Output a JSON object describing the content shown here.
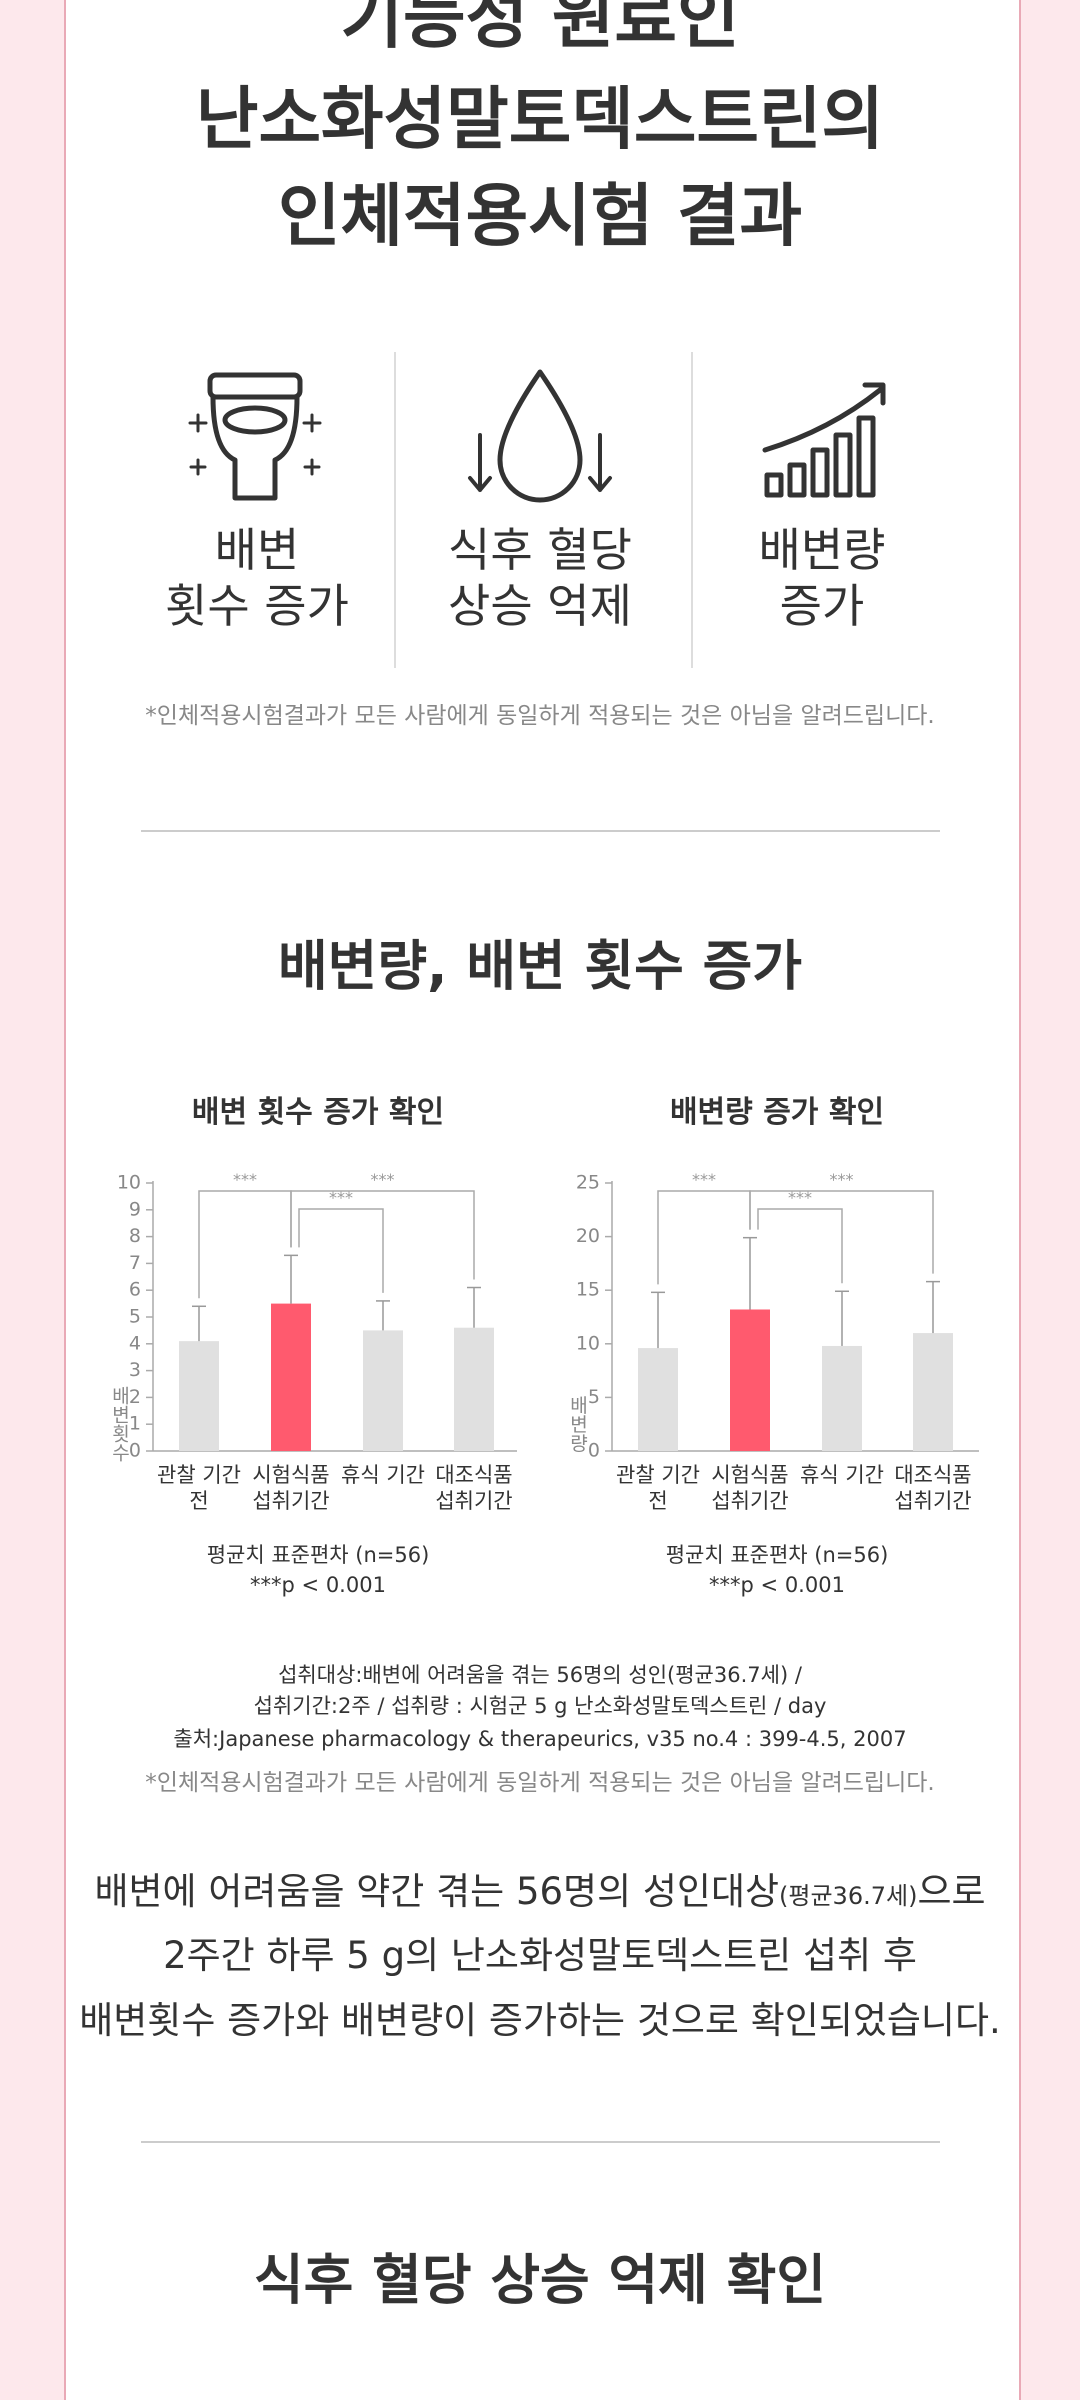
{
  "header": {
    "title_lines": [
      "기능성 원료인",
      "난소화성말토덱스트린의",
      "인체적용시험 결과"
    ]
  },
  "features": [
    {
      "lines": [
        "배변",
        "횟수 증가"
      ]
    },
    {
      "lines": [
        "식후 혈당",
        "상승 억제"
      ]
    },
    {
      "lines": [
        "배변량",
        "증가"
      ]
    }
  ],
  "disclaimer": "*인체적용시험결과가 모든 사람에게 동일하게 적용되는 것은 아님을 알려드립니다.",
  "section1": {
    "title": "배변량, 배변 횟수 증가"
  },
  "chart_data": [
    {
      "type": "bar",
      "title": "배변 횟수 증가 확인",
      "y_label": "배변횟수",
      "categories": [
        "관찰 기간 전",
        "시험식품 섭취기간",
        "휴식 기간",
        "대조식품 섭취기간"
      ],
      "values": [
        4.1,
        5.5,
        4.5,
        4.6
      ],
      "errors": [
        1.3,
        1.8,
        1.1,
        1.5
      ],
      "colors": [
        "#e0e0e0",
        "#ff5a6e",
        "#e0e0e0",
        "#e0e0e0"
      ],
      "ylim": [
        0,
        10
      ],
      "yticks": [
        0,
        1,
        2,
        3,
        4,
        5,
        6,
        7,
        8,
        9,
        10
      ],
      "annotations": [
        "***",
        "***",
        "***"
      ],
      "notes": [
        "평균치 표준편차 (n=56)",
        "***p < 0.001"
      ]
    },
    {
      "type": "bar",
      "title": "배변량 증가 확인",
      "y_label": "배변량",
      "categories": [
        "관찰 기간 전",
        "시험식품 섭취기간",
        "휴식 기간",
        "대조식품 섭취기간"
      ],
      "values": [
        9.6,
        13.2,
        9.8,
        11.0
      ],
      "errors": [
        5.2,
        6.7,
        5.1,
        4.8
      ],
      "colors": [
        "#e0e0e0",
        "#ff5a6e",
        "#e0e0e0",
        "#e0e0e0"
      ],
      "ylim": [
        0,
        25
      ],
      "yticks": [
        0,
        5,
        10,
        15,
        20,
        25
      ],
      "annotations": [
        "***",
        "***",
        "***"
      ],
      "notes": [
        "평균치 표준편차 (n=56)",
        "***p < 0.001"
      ]
    }
  ],
  "study_notes": [
    "섭취대상:배변에 어려움을 겪는 56명의 성인(평균36.7세) /",
    "섭취기간:2주 / 섭취량 : 시험군 5 g 난소화성말토덱스트린 / day",
    "출처:Japanese pharmacology & therapeurics, v35 no.4 : 399-4.5, 2007"
  ],
  "summary": {
    "line1": [
      "배변에 어려움을 약간 겪는 56명의 성인대상",
      "(평균36.7세)",
      "으로"
    ],
    "line2": "2주간 하루 5 g의 난소화성말토덱스트린 섭취 후",
    "line3": "배변횟수 증가와 배변량이 증가하는 것으로 확인되었습니다."
  },
  "section2": {
    "title": "식후 혈당 상승 억제 확인"
  }
}
